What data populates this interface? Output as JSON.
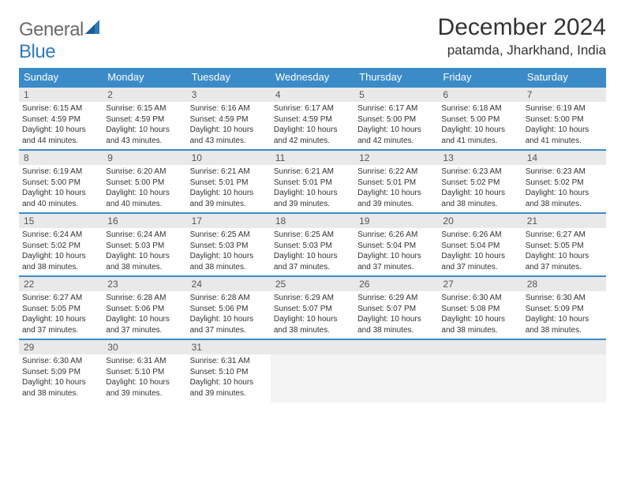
{
  "logo": {
    "general": "General",
    "blue": "Blue"
  },
  "title": "December 2024",
  "location": "patamda, Jharkhand, India",
  "header_bg": "#3b8bc9",
  "days_of_week": [
    "Sunday",
    "Monday",
    "Tuesday",
    "Wednesday",
    "Thursday",
    "Friday",
    "Saturday"
  ],
  "weeks": [
    [
      {
        "n": "1",
        "sr": "6:15 AM",
        "ss": "4:59 PM",
        "dl": "10 hours and 44 minutes."
      },
      {
        "n": "2",
        "sr": "6:15 AM",
        "ss": "4:59 PM",
        "dl": "10 hours and 43 minutes."
      },
      {
        "n": "3",
        "sr": "6:16 AM",
        "ss": "4:59 PM",
        "dl": "10 hours and 43 minutes."
      },
      {
        "n": "4",
        "sr": "6:17 AM",
        "ss": "4:59 PM",
        "dl": "10 hours and 42 minutes."
      },
      {
        "n": "5",
        "sr": "6:17 AM",
        "ss": "5:00 PM",
        "dl": "10 hours and 42 minutes."
      },
      {
        "n": "6",
        "sr": "6:18 AM",
        "ss": "5:00 PM",
        "dl": "10 hours and 41 minutes."
      },
      {
        "n": "7",
        "sr": "6:19 AM",
        "ss": "5:00 PM",
        "dl": "10 hours and 41 minutes."
      }
    ],
    [
      {
        "n": "8",
        "sr": "6:19 AM",
        "ss": "5:00 PM",
        "dl": "10 hours and 40 minutes."
      },
      {
        "n": "9",
        "sr": "6:20 AM",
        "ss": "5:00 PM",
        "dl": "10 hours and 40 minutes."
      },
      {
        "n": "10",
        "sr": "6:21 AM",
        "ss": "5:01 PM",
        "dl": "10 hours and 39 minutes."
      },
      {
        "n": "11",
        "sr": "6:21 AM",
        "ss": "5:01 PM",
        "dl": "10 hours and 39 minutes."
      },
      {
        "n": "12",
        "sr": "6:22 AM",
        "ss": "5:01 PM",
        "dl": "10 hours and 39 minutes."
      },
      {
        "n": "13",
        "sr": "6:23 AM",
        "ss": "5:02 PM",
        "dl": "10 hours and 38 minutes."
      },
      {
        "n": "14",
        "sr": "6:23 AM",
        "ss": "5:02 PM",
        "dl": "10 hours and 38 minutes."
      }
    ],
    [
      {
        "n": "15",
        "sr": "6:24 AM",
        "ss": "5:02 PM",
        "dl": "10 hours and 38 minutes."
      },
      {
        "n": "16",
        "sr": "6:24 AM",
        "ss": "5:03 PM",
        "dl": "10 hours and 38 minutes."
      },
      {
        "n": "17",
        "sr": "6:25 AM",
        "ss": "5:03 PM",
        "dl": "10 hours and 38 minutes."
      },
      {
        "n": "18",
        "sr": "6:25 AM",
        "ss": "5:03 PM",
        "dl": "10 hours and 37 minutes."
      },
      {
        "n": "19",
        "sr": "6:26 AM",
        "ss": "5:04 PM",
        "dl": "10 hours and 37 minutes."
      },
      {
        "n": "20",
        "sr": "6:26 AM",
        "ss": "5:04 PM",
        "dl": "10 hours and 37 minutes."
      },
      {
        "n": "21",
        "sr": "6:27 AM",
        "ss": "5:05 PM",
        "dl": "10 hours and 37 minutes."
      }
    ],
    [
      {
        "n": "22",
        "sr": "6:27 AM",
        "ss": "5:05 PM",
        "dl": "10 hours and 37 minutes."
      },
      {
        "n": "23",
        "sr": "6:28 AM",
        "ss": "5:06 PM",
        "dl": "10 hours and 37 minutes."
      },
      {
        "n": "24",
        "sr": "6:28 AM",
        "ss": "5:06 PM",
        "dl": "10 hours and 37 minutes."
      },
      {
        "n": "25",
        "sr": "6:29 AM",
        "ss": "5:07 PM",
        "dl": "10 hours and 38 minutes."
      },
      {
        "n": "26",
        "sr": "6:29 AM",
        "ss": "5:07 PM",
        "dl": "10 hours and 38 minutes."
      },
      {
        "n": "27",
        "sr": "6:30 AM",
        "ss": "5:08 PM",
        "dl": "10 hours and 38 minutes."
      },
      {
        "n": "28",
        "sr": "6:30 AM",
        "ss": "5:09 PM",
        "dl": "10 hours and 38 minutes."
      }
    ],
    [
      {
        "n": "29",
        "sr": "6:30 AM",
        "ss": "5:09 PM",
        "dl": "10 hours and 38 minutes."
      },
      {
        "n": "30",
        "sr": "6:31 AM",
        "ss": "5:10 PM",
        "dl": "10 hours and 39 minutes."
      },
      {
        "n": "31",
        "sr": "6:31 AM",
        "ss": "5:10 PM",
        "dl": "10 hours and 39 minutes."
      },
      null,
      null,
      null,
      null
    ]
  ],
  "labels": {
    "sunrise": "Sunrise:",
    "sunset": "Sunset:",
    "daylight": "Daylight:"
  }
}
